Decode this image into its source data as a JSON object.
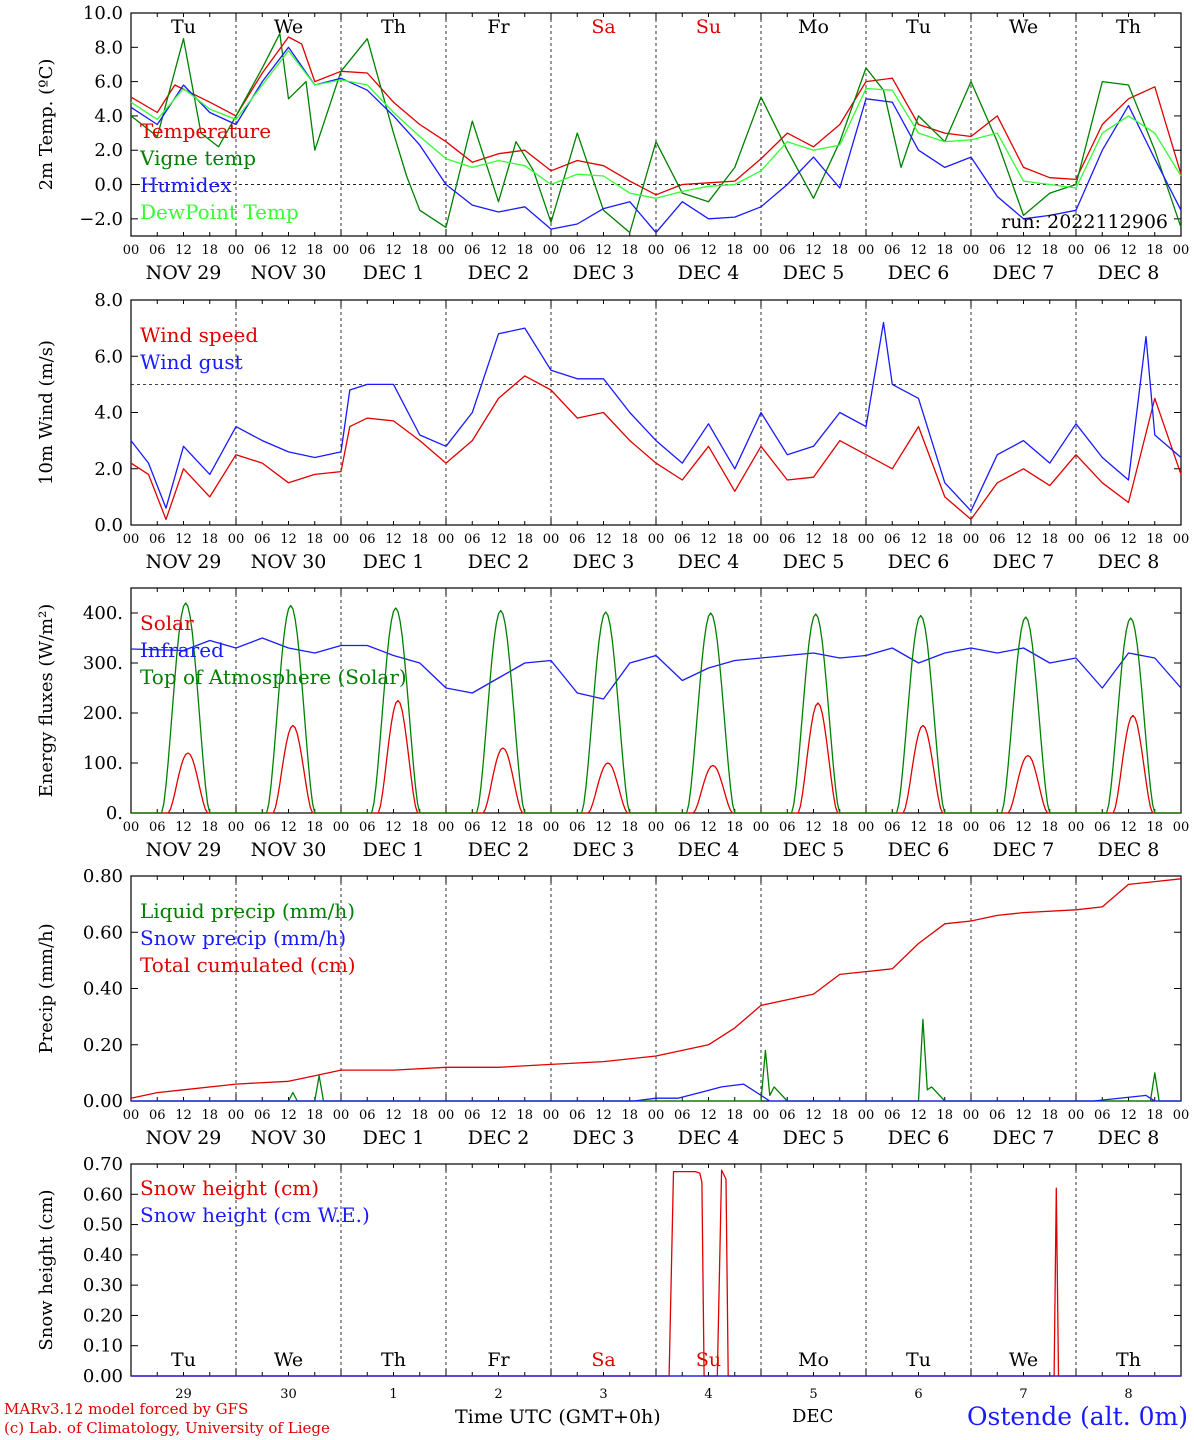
{
  "colors": {
    "red": "#e00000",
    "green": "#008000",
    "blue": "#1a1aff",
    "lightgreen": "#33ff33",
    "black": "#000000"
  },
  "x_axis": {
    "hour_ticks": [
      "00",
      "06",
      "12",
      "18"
    ],
    "days": [
      "NOV 29",
      "NOV 30",
      "DEC  1",
      "DEC  2",
      "DEC  3",
      "DEC  4",
      "DEC  5",
      "DEC  6",
      "DEC  7",
      "DEC  8"
    ],
    "weekdays": [
      "Tu",
      "We",
      "Th",
      "Fr",
      "Sa",
      "Su",
      "Mo",
      "Tu",
      "We",
      "Th"
    ],
    "weekend_indices": [
      4,
      5
    ],
    "bottom_day_numbers": [
      "29",
      "30",
      "1",
      "2",
      "3",
      "4",
      "5",
      "6",
      "7",
      "8"
    ],
    "month": "DEC",
    "title": "Time UTC (GMT+0h)"
  },
  "footer": {
    "credit_line1": "MARv3.12 model forced by GFS",
    "credit_line2": "(c) Lab. of Climatology, University of Liege",
    "station": "Ostende (alt. 0m)"
  },
  "chart_data": [
    {
      "type": "line",
      "ylabel": "2m Temp. (ºC)",
      "ylim": [
        -3,
        10
      ],
      "yticks": [
        -2,
        0,
        2,
        4,
        6,
        8,
        10
      ],
      "ytick_labels": [
        "−2.0",
        "0.0",
        "2.0",
        "4.0",
        "6.0",
        "8.0",
        "10.0"
      ],
      "refline": 0,
      "annotation": "run: 2022112906",
      "x_unit": "hours since 2022-11-29 00 UTC",
      "series": [
        {
          "name": "Temperature",
          "color": "#e00000",
          "x": [
            0,
            6,
            10,
            14,
            18,
            24,
            30,
            36,
            39,
            42,
            48,
            54,
            60,
            66,
            72,
            78,
            84,
            90,
            96,
            102,
            108,
            114,
            120,
            126,
            132,
            138,
            144,
            150,
            156,
            162,
            168,
            174,
            180,
            186,
            192,
            198,
            204,
            210,
            216,
            222,
            228,
            234,
            240
          ],
          "values": [
            5.1,
            4.2,
            5.8,
            5.3,
            4.8,
            4.0,
            6.5,
            8.6,
            8.2,
            6.0,
            6.6,
            6.5,
            4.8,
            3.5,
            2.5,
            1.3,
            1.8,
            2.0,
            0.8,
            1.4,
            1.1,
            0.2,
            -0.6,
            0.0,
            0.1,
            0.2,
            1.5,
            3.0,
            2.2,
            3.5,
            6.0,
            6.2,
            3.5,
            3.0,
            2.8,
            4.0,
            1.0,
            0.4,
            0.3,
            3.5,
            5.0,
            5.7,
            0.6
          ]
        },
        {
          "name": "Vigne temp",
          "color": "#008000",
          "x": [
            0,
            6,
            12,
            16,
            20,
            24,
            30,
            34,
            36,
            40,
            42,
            48,
            54,
            60,
            63,
            66,
            72,
            78,
            84,
            88,
            92,
            96,
            102,
            108,
            114,
            120,
            126,
            132,
            138,
            144,
            150,
            156,
            162,
            168,
            172,
            176,
            180,
            186,
            192,
            198,
            204,
            210,
            216,
            222,
            228,
            234,
            240
          ],
          "values": [
            4.0,
            2.8,
            8.5,
            3.0,
            2.2,
            4.0,
            6.8,
            8.8,
            5.0,
            6.0,
            2.0,
            6.6,
            8.5,
            3.0,
            0.5,
            -1.5,
            -2.5,
            3.7,
            -1.0,
            2.5,
            0.8,
            -2.2,
            3.0,
            -1.5,
            -2.8,
            2.5,
            -0.5,
            -1.0,
            1.0,
            5.1,
            2.0,
            -0.8,
            2.5,
            6.8,
            5.5,
            1.0,
            4.0,
            2.5,
            6.0,
            2.5,
            -1.8,
            -0.5,
            0.0,
            6.0,
            5.8,
            2.0,
            -2.5
          ]
        },
        {
          "name": "Humidex",
          "color": "#1a1aff",
          "x": [
            0,
            6,
            12,
            18,
            24,
            30,
            36,
            42,
            48,
            54,
            60,
            66,
            72,
            78,
            84,
            90,
            96,
            102,
            108,
            114,
            120,
            126,
            132,
            138,
            144,
            150,
            156,
            162,
            168,
            174,
            180,
            186,
            192,
            198,
            204,
            210,
            216,
            222,
            228,
            234,
            240
          ],
          "values": [
            4.5,
            3.5,
            5.8,
            4.2,
            3.5,
            6.0,
            8.0,
            5.8,
            6.2,
            5.5,
            4.0,
            2.3,
            0.0,
            -1.2,
            -1.6,
            -1.3,
            -2.6,
            -2.3,
            -1.4,
            -1.0,
            -2.8,
            -1.0,
            -2.0,
            -1.9,
            -1.3,
            0.0,
            1.6,
            -0.2,
            5.0,
            4.8,
            2.0,
            1.0,
            1.6,
            -0.7,
            -2.0,
            -1.8,
            -1.5,
            2.0,
            4.6,
            1.5,
            -1.5
          ]
        },
        {
          "name": "DewPoint Temp",
          "color": "#33ff33",
          "x": [
            0,
            6,
            12,
            18,
            24,
            30,
            36,
            42,
            48,
            54,
            60,
            66,
            72,
            78,
            84,
            90,
            96,
            102,
            108,
            114,
            120,
            126,
            132,
            138,
            144,
            150,
            156,
            162,
            168,
            174,
            180,
            186,
            192,
            198,
            204,
            210,
            216,
            222,
            228,
            234,
            240
          ],
          "values": [
            4.8,
            3.8,
            5.6,
            4.4,
            3.8,
            5.8,
            7.8,
            5.8,
            6.1,
            5.8,
            4.2,
            2.8,
            1.5,
            1.0,
            1.4,
            1.1,
            0.0,
            0.6,
            0.5,
            -0.5,
            -0.8,
            -0.4,
            -0.1,
            0.0,
            0.8,
            2.5,
            2.0,
            2.3,
            5.6,
            5.5,
            3.0,
            2.5,
            2.6,
            3.0,
            0.2,
            0.0,
            -0.2,
            3.0,
            4.0,
            3.0,
            0.5
          ]
        }
      ]
    },
    {
      "type": "line",
      "ylabel": "10m Wind (m/s)",
      "ylim": [
        0,
        8
      ],
      "yticks": [
        0,
        2,
        4,
        6,
        8
      ],
      "ytick_labels": [
        "0.0",
        "2.0",
        "4.0",
        "6.0",
        "8.0"
      ],
      "refline": 5,
      "x_unit": "hours since 2022-11-29 00 UTC",
      "series": [
        {
          "name": "Wind speed",
          "color": "#e00000",
          "x": [
            0,
            4,
            8,
            12,
            18,
            24,
            30,
            36,
            42,
            48,
            50,
            54,
            60,
            66,
            72,
            78,
            84,
            90,
            96,
            102,
            108,
            114,
            120,
            126,
            132,
            138,
            144,
            150,
            156,
            162,
            168,
            174,
            180,
            186,
            192,
            198,
            204,
            210,
            216,
            222,
            228,
            234,
            240
          ],
          "values": [
            2.2,
            1.8,
            0.2,
            2.0,
            1.0,
            2.5,
            2.2,
            1.5,
            1.8,
            1.9,
            3.5,
            3.8,
            3.7,
            3.0,
            2.2,
            3.0,
            4.5,
            5.3,
            4.8,
            3.8,
            4.0,
            3.0,
            2.2,
            1.6,
            2.8,
            1.2,
            2.8,
            1.6,
            1.7,
            3.0,
            2.5,
            2.0,
            3.5,
            1.0,
            0.2,
            1.5,
            2.0,
            1.4,
            2.5,
            1.5,
            0.8,
            4.5,
            1.8
          ]
        },
        {
          "name": "Wind gust",
          "color": "#1a1aff",
          "x": [
            0,
            4,
            8,
            12,
            18,
            24,
            30,
            36,
            42,
            48,
            50,
            54,
            60,
            66,
            72,
            78,
            84,
            90,
            96,
            102,
            108,
            114,
            120,
            126,
            132,
            138,
            144,
            150,
            156,
            162,
            168,
            172,
            174,
            180,
            186,
            192,
            198,
            204,
            210,
            216,
            222,
            228,
            232,
            234,
            240
          ],
          "values": [
            3.0,
            2.2,
            0.6,
            2.8,
            1.8,
            3.5,
            3.0,
            2.6,
            2.4,
            2.6,
            4.8,
            5.0,
            5.0,
            3.2,
            2.8,
            4.0,
            6.8,
            7.0,
            5.5,
            5.2,
            5.2,
            4.0,
            3.0,
            2.2,
            3.6,
            2.0,
            4.0,
            2.5,
            2.8,
            4.0,
            3.5,
            7.2,
            5.0,
            4.5,
            1.5,
            0.5,
            2.5,
            3.0,
            2.2,
            3.6,
            2.4,
            1.6,
            6.7,
            3.2,
            2.4
          ]
        }
      ]
    },
    {
      "type": "line",
      "ylabel": "Energy fluxes (W/m²)",
      "ylim": [
        0,
        450
      ],
      "yticks": [
        0,
        100,
        200,
        300,
        400
      ],
      "ytick_labels": [
        "0.",
        "100.",
        "200.",
        "300.",
        "400."
      ],
      "x_unit": "hours since 2022-11-29 00 UTC",
      "series": [
        {
          "name": "Solar",
          "color": "#e00000",
          "peaks": [
            120,
            175,
            225,
            130,
            100,
            95,
            220,
            175,
            115,
            195
          ]
        },
        {
          "name": "Infrared",
          "color": "#1a1aff",
          "x": [
            0,
            12,
            18,
            24,
            30,
            36,
            42,
            48,
            54,
            60,
            66,
            72,
            78,
            84,
            90,
            96,
            102,
            108,
            114,
            120,
            126,
            132,
            138,
            144,
            150,
            156,
            162,
            168,
            174,
            180,
            186,
            192,
            198,
            204,
            210,
            216,
            222,
            228,
            234,
            240
          ],
          "values": [
            328,
            325,
            345,
            330,
            350,
            330,
            320,
            335,
            335,
            315,
            300,
            250,
            240,
            270,
            300,
            305,
            240,
            228,
            300,
            315,
            265,
            290,
            305,
            310,
            315,
            320,
            310,
            315,
            330,
            300,
            320,
            330,
            320,
            330,
            300,
            310,
            250,
            320,
            310,
            250
          ]
        },
        {
          "name": "Top of Atmosphere (Solar)",
          "color": "#008000",
          "peaks": [
            420,
            415,
            410,
            405,
            402,
            400,
            398,
            395,
            392,
            390
          ]
        }
      ]
    },
    {
      "type": "line",
      "ylabel": "Precip (mm/h)",
      "ylim": [
        0,
        0.8
      ],
      "yticks": [
        0,
        0.2,
        0.4,
        0.6,
        0.8
      ],
      "ytick_labels": [
        "0.00",
        "0.20",
        "0.40",
        "0.60",
        "0.80"
      ],
      "x_unit": "hours since 2022-11-29 00 UTC",
      "series": [
        {
          "name": "Liquid precip (mm/h)",
          "color": "#008000",
          "x": [
            0,
            36,
            37,
            38,
            42,
            43,
            44,
            60,
            144,
            145,
            146,
            147,
            150,
            180,
            181,
            182,
            183,
            186,
            233,
            234,
            235,
            240
          ],
          "values": [
            0,
            0,
            0.03,
            0,
            0,
            0.09,
            0,
            0,
            0,
            0.18,
            0.02,
            0.05,
            0,
            0,
            0.29,
            0.04,
            0.05,
            0,
            0,
            0.1,
            0,
            0
          ]
        },
        {
          "name": "Snow precip (mm/h)",
          "color": "#1a1aff",
          "x": [
            0,
            115,
            120,
            125,
            130,
            135,
            140,
            146,
            220,
            232,
            234,
            240
          ],
          "values": [
            0,
            0,
            0.01,
            0.01,
            0.03,
            0.05,
            0.06,
            0,
            0,
            0.02,
            0,
            0
          ]
        },
        {
          "name": "Total cumulated (cm)",
          "color": "#e00000",
          "x": [
            0,
            6,
            12,
            24,
            36,
            42,
            48,
            60,
            72,
            84,
            96,
            108,
            120,
            132,
            138,
            144,
            150,
            156,
            162,
            168,
            174,
            180,
            186,
            192,
            198,
            204,
            216,
            222,
            228,
            234,
            240
          ],
          "values": [
            0.01,
            0.03,
            0.04,
            0.06,
            0.07,
            0.09,
            0.11,
            0.11,
            0.12,
            0.12,
            0.13,
            0.14,
            0.16,
            0.2,
            0.26,
            0.34,
            0.36,
            0.38,
            0.45,
            0.46,
            0.47,
            0.56,
            0.63,
            0.64,
            0.66,
            0.67,
            0.68,
            0.69,
            0.77,
            0.78,
            0.79
          ]
        }
      ]
    },
    {
      "type": "line",
      "ylabel": "Snow height (cm)",
      "ylim": [
        0,
        0.7
      ],
      "yticks": [
        0,
        0.1,
        0.2,
        0.3,
        0.4,
        0.5,
        0.6,
        0.7
      ],
      "ytick_labels": [
        "0.00",
        "0.10",
        "0.20",
        "0.30",
        "0.40",
        "0.50",
        "0.60",
        "0.70"
      ],
      "x_unit": "hours since 2022-11-29 00 UTC",
      "series": [
        {
          "name": "Snow height (cm)",
          "color": "#e00000",
          "x": [
            0,
            123,
            124,
            129,
            130,
            130.5,
            131,
            134,
            135,
            136,
            136.5,
            137,
            138,
            211,
            211.5,
            212,
            240
          ],
          "values": [
            0,
            0,
            0.675,
            0.675,
            0.67,
            0.64,
            0,
            0,
            0.68,
            0.65,
            0,
            0,
            0,
            0,
            0.62,
            0,
            0
          ]
        },
        {
          "name": "Snow height (cm W.E.)",
          "color": "#1a1aff",
          "x": [
            0,
            240
          ],
          "values": [
            0,
            0
          ]
        }
      ]
    }
  ]
}
